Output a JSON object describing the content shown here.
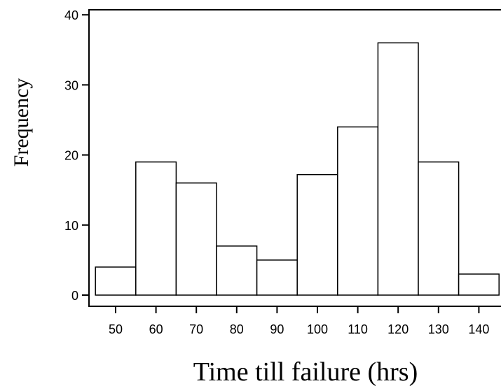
{
  "chart_data": {
    "type": "bar",
    "subtype": "histogram",
    "xlabel": "Time till failure (hrs)",
    "ylabel": "Frequency",
    "bins": [
      {
        "from": 45,
        "to": 55,
        "value": 4
      },
      {
        "from": 55,
        "to": 65,
        "value": 19
      },
      {
        "from": 65,
        "to": 75,
        "value": 16
      },
      {
        "from": 75,
        "to": 85,
        "value": 7
      },
      {
        "from": 85,
        "to": 95,
        "value": 5
      },
      {
        "from": 95,
        "to": 105,
        "value": 17.2
      },
      {
        "from": 105,
        "to": 115,
        "value": 24
      },
      {
        "from": 115,
        "to": 125,
        "value": 36
      },
      {
        "from": 125,
        "to": 135,
        "value": 19
      },
      {
        "from": 135,
        "to": 145,
        "value": 3
      }
    ],
    "x_ticks": [
      50,
      60,
      70,
      80,
      90,
      100,
      110,
      120,
      130,
      140
    ],
    "x_tick_labels": [
      "50",
      "60",
      "70",
      "80",
      "90",
      "100",
      "110",
      "120",
      "130",
      "140"
    ],
    "y_ticks": [
      0,
      10,
      20,
      30,
      40
    ],
    "y_tick_labels": [
      "0",
      "10",
      "20",
      "30",
      "40"
    ],
    "ylim": [
      0,
      40
    ],
    "grid": false,
    "bar_fill": "#ffffff",
    "bar_stroke": "#000000"
  }
}
